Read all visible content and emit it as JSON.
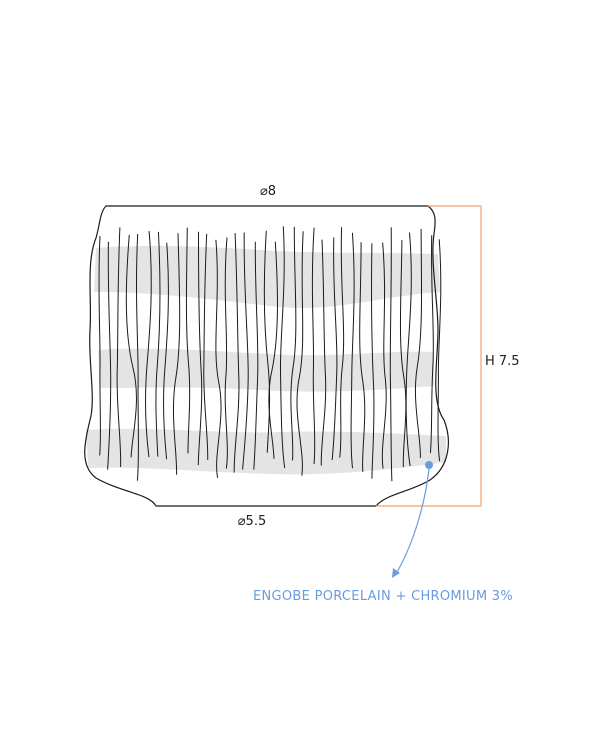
{
  "dimensions": {
    "top_diameter": "⌀8",
    "bottom_diameter": "⌀5.5",
    "height": "H 7.5"
  },
  "note": {
    "text": "ENGOBE PORCELAIN + CHROMIUM 3%"
  },
  "colors": {
    "outline": "#1a1a1a",
    "band": "#e4e4e4",
    "dimension": "#f0a06a",
    "note": "#6a9be0",
    "text": "#222222"
  }
}
